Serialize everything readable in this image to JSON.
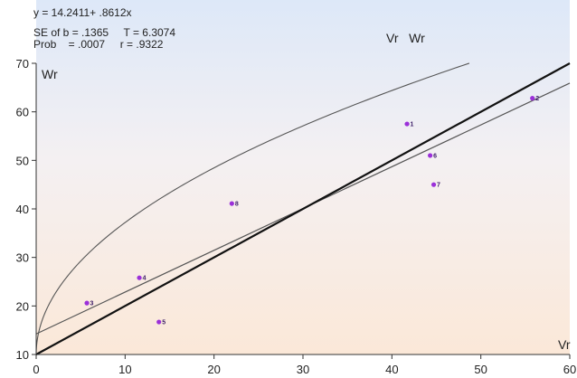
{
  "stats": {
    "equation": "y = 14.2411+ .8612x",
    "se_line": "SE of b = .1365     T = 6.3074",
    "prob_line": "Prob    = .0007     r = .9322"
  },
  "header_label": "Vr   Wr",
  "chart_data": {
    "type": "scatter",
    "title": "",
    "xlabel": "Vr",
    "ylabel": "Wr",
    "xlim": [
      0,
      60
    ],
    "ylim": [
      10,
      70
    ],
    "xticks": [
      0,
      10,
      20,
      30,
      40,
      50,
      60
    ],
    "yticks": [
      10,
      20,
      30,
      40,
      50,
      60,
      70
    ],
    "points": [
      {
        "label": "1",
        "x": 41.7,
        "y": 57.5
      },
      {
        "label": "2",
        "x": 55.8,
        "y": 62.8
      },
      {
        "label": "3",
        "x": 5.7,
        "y": 20.6
      },
      {
        "label": "4",
        "x": 11.6,
        "y": 25.8
      },
      {
        "label": "5",
        "x": 13.8,
        "y": 16.7
      },
      {
        "label": "6",
        "x": 44.3,
        "y": 51.0
      },
      {
        "label": "7",
        "x": 44.7,
        "y": 45.0
      },
      {
        "label": "8",
        "x": 22.0,
        "y": 41.1
      }
    ],
    "regression_line": {
      "intercept": 14.2411,
      "slope": 0.8612
    },
    "colors": {
      "point": "#9b30d9",
      "lines": "#555555",
      "bg_top": "#dde8f8",
      "bg_bottom": "#fbe8d8"
    }
  }
}
